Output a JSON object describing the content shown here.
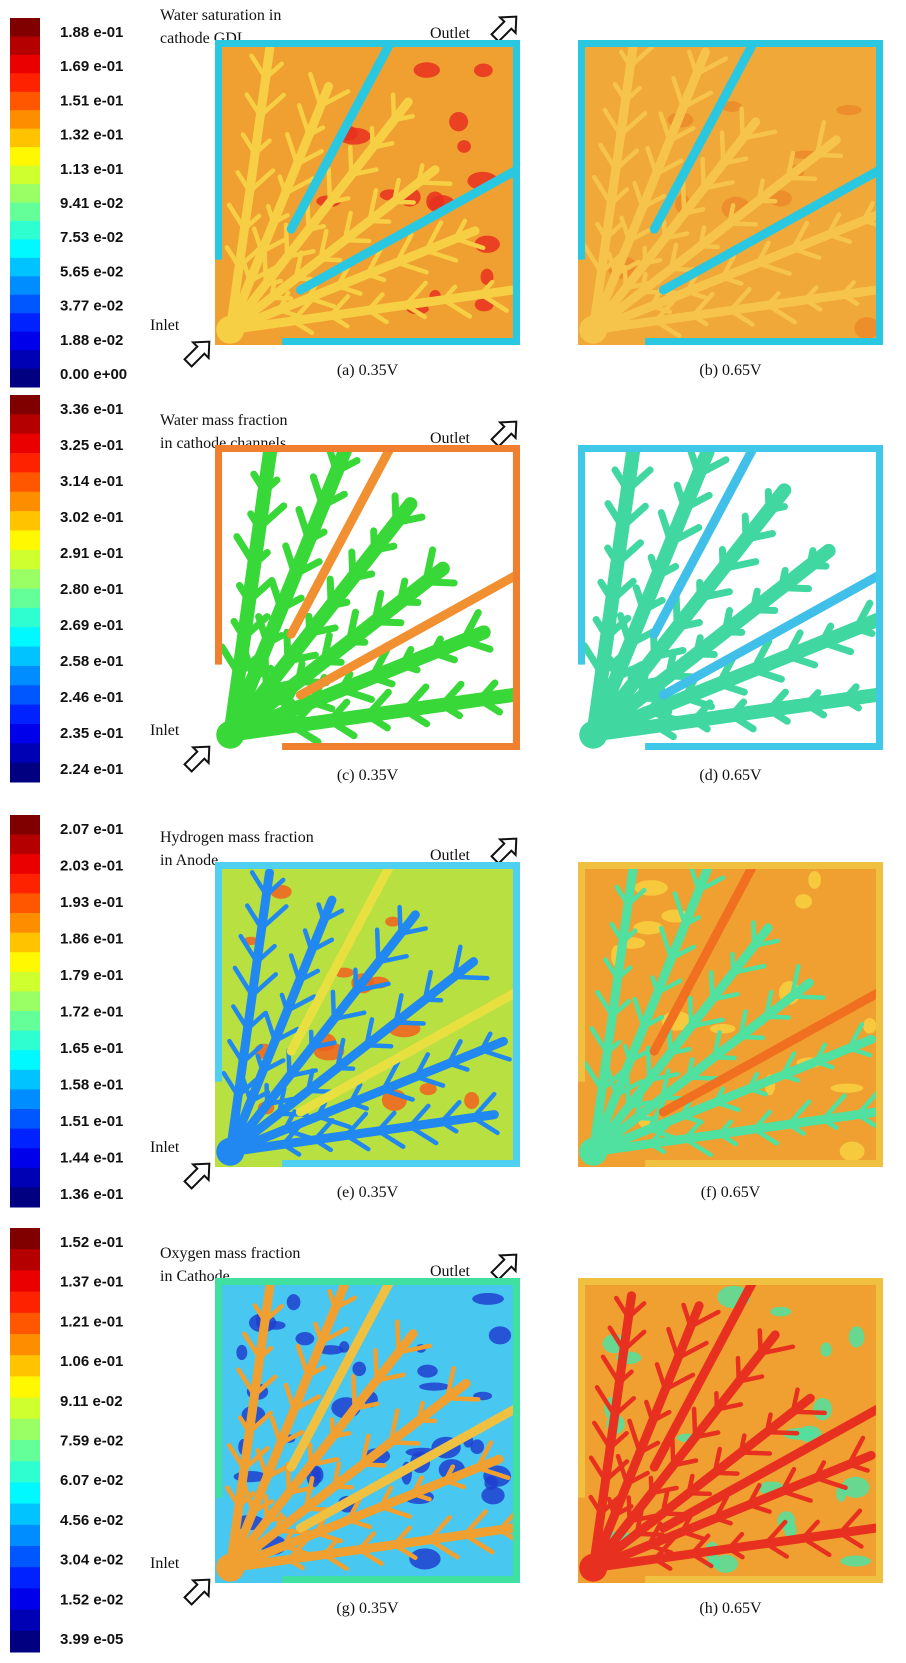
{
  "panels": [
    {
      "legend": [
        "1.88 e-01",
        "1.69 e-01",
        "1.51 e-01",
        "1.32 e-01",
        "1.13 e-01",
        "9.41 e-02",
        "7.53 e-02",
        "5.65 e-02",
        "3.77 e-02",
        "1.88 e-02",
        "0.00 e+00"
      ],
      "title": [
        "Water saturation in",
        "cathode GDL"
      ],
      "inlet": "Inlet",
      "outlet": "Outlet",
      "captions": [
        "(a) 0.35V",
        "(b) 0.65V"
      ]
    },
    {
      "legend": [
        "3.36 e-01",
        "3.25 e-01",
        "3.14 e-01",
        "3.02 e-01",
        "2.91 e-01",
        "2.80 e-01",
        "2.69 e-01",
        "2.58 e-01",
        "2.46 e-01",
        "2.35 e-01",
        "2.24 e-01"
      ],
      "title": [
        "Water mass fraction",
        "in cathode channels"
      ],
      "inlet": "Inlet",
      "outlet": "Outlet",
      "captions": [
        "(c) 0.35V",
        "(d) 0.65V"
      ]
    },
    {
      "legend": [
        "2.07 e-01",
        "2.03 e-01",
        "1.93 e-01",
        "1.86 e-01",
        "1.79 e-01",
        "1.72 e-01",
        "1.65 e-01",
        "1.58 e-01",
        "1.51 e-01",
        "1.44 e-01",
        "1.36 e-01"
      ],
      "title": [
        "Hydrogen mass fraction",
        "in Anode"
      ],
      "inlet": "Inlet",
      "outlet": "Outlet",
      "captions": [
        "(e) 0.35V",
        "(f) 0.65V"
      ]
    },
    {
      "legend": [
        "1.52 e-01",
        "1.37 e-01",
        "1.21 e-01",
        "1.06 e-01",
        "9.11 e-02",
        "7.59 e-02",
        "6.07 e-02",
        "4.56 e-02",
        "3.04 e-02",
        "1.52 e-02",
        "3.99 e-05"
      ],
      "title": [
        "Oxygen mass fraction",
        "in Cathode"
      ],
      "inlet": "Inlet",
      "outlet": "Outlet",
      "captions": [
        "(g) 0.35V",
        "(h) 0.65V"
      ]
    }
  ]
}
